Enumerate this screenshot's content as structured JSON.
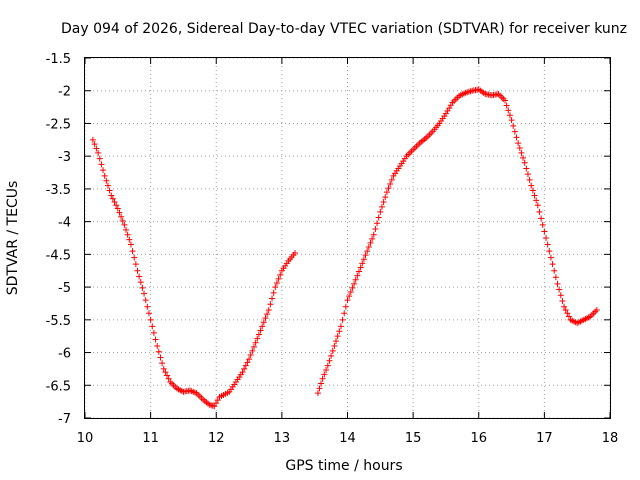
{
  "chart_data": {
    "type": "scatter",
    "title": "Day 094 of 2026, Sidereal Day-to-day VTEC variation (SDTVAR) for receiver kunz",
    "xlabel": "GPS time / hours",
    "ylabel": "SDTVAR / TECUs",
    "xlim": [
      10,
      18
    ],
    "ylim": [
      -7,
      -1.5
    ],
    "xticks": [
      "10",
      "11",
      "12",
      "13",
      "14",
      "15",
      "16",
      "17",
      "18"
    ],
    "yticks": [
      "-1.5",
      "-2",
      "-2.5",
      "-3",
      "-3.5",
      "-4",
      "-4.5",
      "-5",
      "-5.5",
      "-6",
      "-6.5",
      "-7"
    ],
    "grid": true,
    "marker": "+",
    "color": "#ff0000",
    "series": [
      {
        "name": "segment-1",
        "x": [
          10.12,
          10.2,
          10.3,
          10.4,
          10.5,
          10.6,
          10.7,
          10.8,
          10.9,
          11.0,
          11.1,
          11.2,
          11.3,
          11.4,
          11.5,
          11.6,
          11.7,
          11.8,
          11.9,
          11.97,
          12.05,
          12.2,
          12.3,
          12.4,
          12.5,
          12.6,
          12.7,
          12.8,
          12.9,
          13.0,
          13.1,
          13.2
        ],
        "y": [
          -2.75,
          -2.95,
          -3.3,
          -3.6,
          -3.8,
          -4.05,
          -4.35,
          -4.75,
          -5.1,
          -5.5,
          -5.9,
          -6.25,
          -6.45,
          -6.55,
          -6.6,
          -6.58,
          -6.62,
          -6.72,
          -6.8,
          -6.82,
          -6.68,
          -6.6,
          -6.45,
          -6.3,
          -6.1,
          -5.85,
          -5.6,
          -5.35,
          -5.0,
          -4.75,
          -4.6,
          -4.48
        ]
      },
      {
        "name": "segment-2",
        "x": [
          13.55,
          13.62,
          13.7,
          13.8,
          13.9,
          14.0,
          14.1,
          14.2,
          14.3,
          14.4,
          14.5,
          14.6,
          14.7,
          14.8,
          14.9,
          15.0,
          15.1,
          15.2,
          15.3,
          15.4,
          15.5,
          15.6,
          15.7,
          15.8,
          15.9,
          16.0,
          16.1,
          16.2,
          16.3,
          16.4,
          16.5,
          16.6,
          16.7,
          16.8,
          16.9,
          17.0,
          17.1,
          17.2,
          17.3,
          17.4,
          17.5,
          17.6,
          17.7,
          17.8
        ],
        "y": [
          -6.62,
          -6.4,
          -6.2,
          -5.9,
          -5.6,
          -5.2,
          -4.95,
          -4.7,
          -4.45,
          -4.2,
          -3.85,
          -3.55,
          -3.3,
          -3.15,
          -3.0,
          -2.9,
          -2.8,
          -2.72,
          -2.62,
          -2.5,
          -2.35,
          -2.18,
          -2.08,
          -2.03,
          -2.0,
          -1.98,
          -2.05,
          -2.07,
          -2.05,
          -2.15,
          -2.45,
          -2.8,
          -3.1,
          -3.45,
          -3.75,
          -4.15,
          -4.55,
          -4.95,
          -5.3,
          -5.5,
          -5.55,
          -5.5,
          -5.45,
          -5.35
        ]
      }
    ]
  }
}
